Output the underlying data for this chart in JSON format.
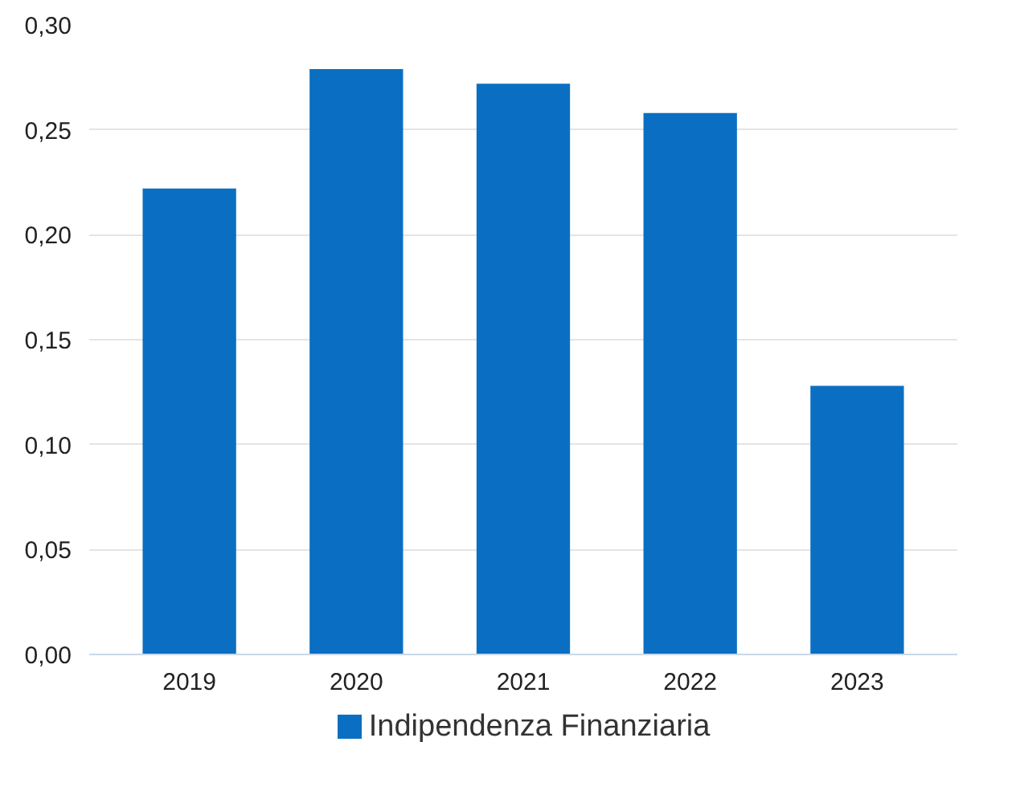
{
  "chart_data": {
    "type": "bar",
    "categories": [
      "2019",
      "2020",
      "2021",
      "2022",
      "2023"
    ],
    "series": [
      {
        "name": "Indipendenza Finanziaria",
        "color": "#0a6fc2",
        "values": [
          0.222,
          0.279,
          0.272,
          0.258,
          0.128
        ]
      }
    ],
    "ylim": [
      0,
      0.3
    ],
    "yticks": [
      {
        "value": 0,
        "label": "0,00"
      },
      {
        "value": 0.05,
        "label": "0,05"
      },
      {
        "value": 0.1,
        "label": "0,10"
      },
      {
        "value": 0.15,
        "label": "0,15"
      },
      {
        "value": 0.2,
        "label": "0,20"
      },
      {
        "value": 0.25,
        "label": "0,25"
      },
      {
        "value": 0.3,
        "label": "0,30"
      }
    ],
    "grid": "y",
    "legend": "bottom"
  }
}
